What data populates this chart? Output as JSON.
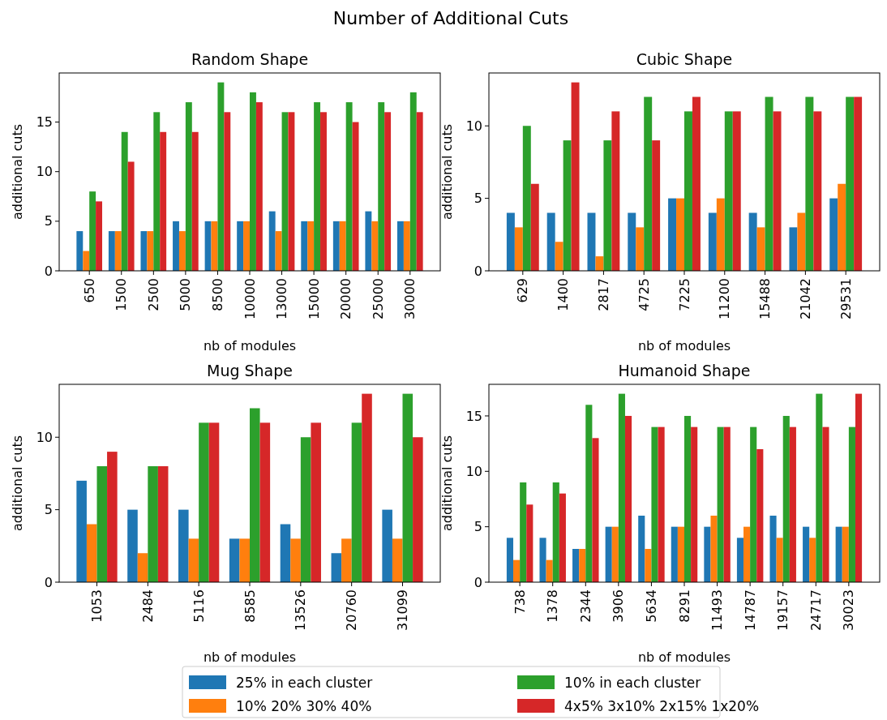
{
  "chart_data": [
    {
      "type": "bar",
      "title": "Random Shape",
      "xlabel": "nb of modules",
      "ylabel": "additional cuts",
      "legend": "bottom",
      "annotations": [
        "Number of Additional Cuts"
      ],
      "categories": [
        "650",
        "1500",
        "2500",
        "5000",
        "8500",
        "10000",
        "13000",
        "15000",
        "20000",
        "25000",
        "30000"
      ],
      "ylim": [
        0,
        19.95
      ],
      "yticks": [
        0,
        5,
        10,
        15
      ],
      "series": [
        {
          "name": "25% in each cluster",
          "color": "#1f77b4",
          "values": [
            4,
            4,
            4,
            5,
            5,
            5,
            6,
            5,
            5,
            6,
            5
          ]
        },
        {
          "name": "10% 20% 30% 40%",
          "color": "#ff7f0e",
          "values": [
            2,
            4,
            4,
            4,
            5,
            5,
            4,
            5,
            5,
            5,
            5
          ]
        },
        {
          "name": "10% in each cluster",
          "color": "#2ca02c",
          "values": [
            8,
            14,
            16,
            17,
            19,
            18,
            16,
            17,
            17,
            17,
            18
          ]
        },
        {
          "name": "4x5% 3x10% 2x15% 1x20%",
          "color": "#d62728",
          "values": [
            7,
            11,
            14,
            14,
            16,
            17,
            16,
            16,
            15,
            16,
            16
          ]
        }
      ]
    },
    {
      "type": "bar",
      "title": "Cubic Shape",
      "xlabel": "nb of modules",
      "ylabel": "additional cuts",
      "categories": [
        "629",
        "1400",
        "2817",
        "4725",
        "7225",
        "11200",
        "15488",
        "21042",
        "29531"
      ],
      "ylim": [
        0,
        13.65
      ],
      "yticks": [
        0,
        5,
        10
      ],
      "series": [
        {
          "color": "#1f77b4",
          "values": [
            4,
            4,
            4,
            4,
            5,
            4,
            4,
            3,
            5
          ]
        },
        {
          "color": "#ff7f0e",
          "values": [
            3,
            2,
            1,
            3,
            5,
            5,
            3,
            4,
            6
          ]
        },
        {
          "color": "#2ca02c",
          "values": [
            10,
            9,
            9,
            12,
            11,
            11,
            12,
            12,
            12
          ]
        },
        {
          "color": "#d62728",
          "values": [
            6,
            13,
            11,
            9,
            12,
            11,
            11,
            11,
            12
          ]
        }
      ]
    },
    {
      "type": "bar",
      "title": "Mug Shape",
      "xlabel": "nb of modules",
      "ylabel": "additional cuts",
      "categories": [
        "1053",
        "2484",
        "5116",
        "8585",
        "13526",
        "20760",
        "31099"
      ],
      "ylim": [
        0,
        13.65
      ],
      "yticks": [
        0,
        5,
        10
      ],
      "series": [
        {
          "color": "#1f77b4",
          "values": [
            7,
            5,
            5,
            3,
            4,
            2,
            5
          ]
        },
        {
          "color": "#ff7f0e",
          "values": [
            4,
            2,
            3,
            3,
            3,
            3,
            3
          ]
        },
        {
          "color": "#2ca02c",
          "values": [
            8,
            8,
            11,
            12,
            10,
            11,
            13
          ]
        },
        {
          "color": "#d62728",
          "values": [
            9,
            8,
            11,
            11,
            11,
            13,
            10
          ]
        }
      ]
    },
    {
      "type": "bar",
      "title": "Humanoid Shape",
      "xlabel": "nb of modules",
      "ylabel": "additional cuts",
      "categories": [
        "738",
        "1378",
        "2344",
        "3906",
        "5634",
        "8291",
        "11493",
        "14787",
        "19157",
        "24717",
        "30023"
      ],
      "ylim": [
        0,
        17.85
      ],
      "yticks": [
        0,
        5,
        10,
        15
      ],
      "series": [
        {
          "color": "#1f77b4",
          "values": [
            4,
            4,
            3,
            5,
            6,
            5,
            5,
            4,
            6,
            5,
            5
          ]
        },
        {
          "color": "#ff7f0e",
          "values": [
            2,
            2,
            3,
            5,
            3,
            5,
            6,
            5,
            4,
            4,
            5
          ]
        },
        {
          "color": "#2ca02c",
          "values": [
            9,
            9,
            16,
            17,
            14,
            15,
            14,
            14,
            15,
            17,
            14
          ]
        },
        {
          "color": "#d62728",
          "values": [
            7,
            8,
            13,
            15,
            14,
            14,
            14,
            12,
            14,
            14,
            17
          ]
        }
      ]
    }
  ]
}
